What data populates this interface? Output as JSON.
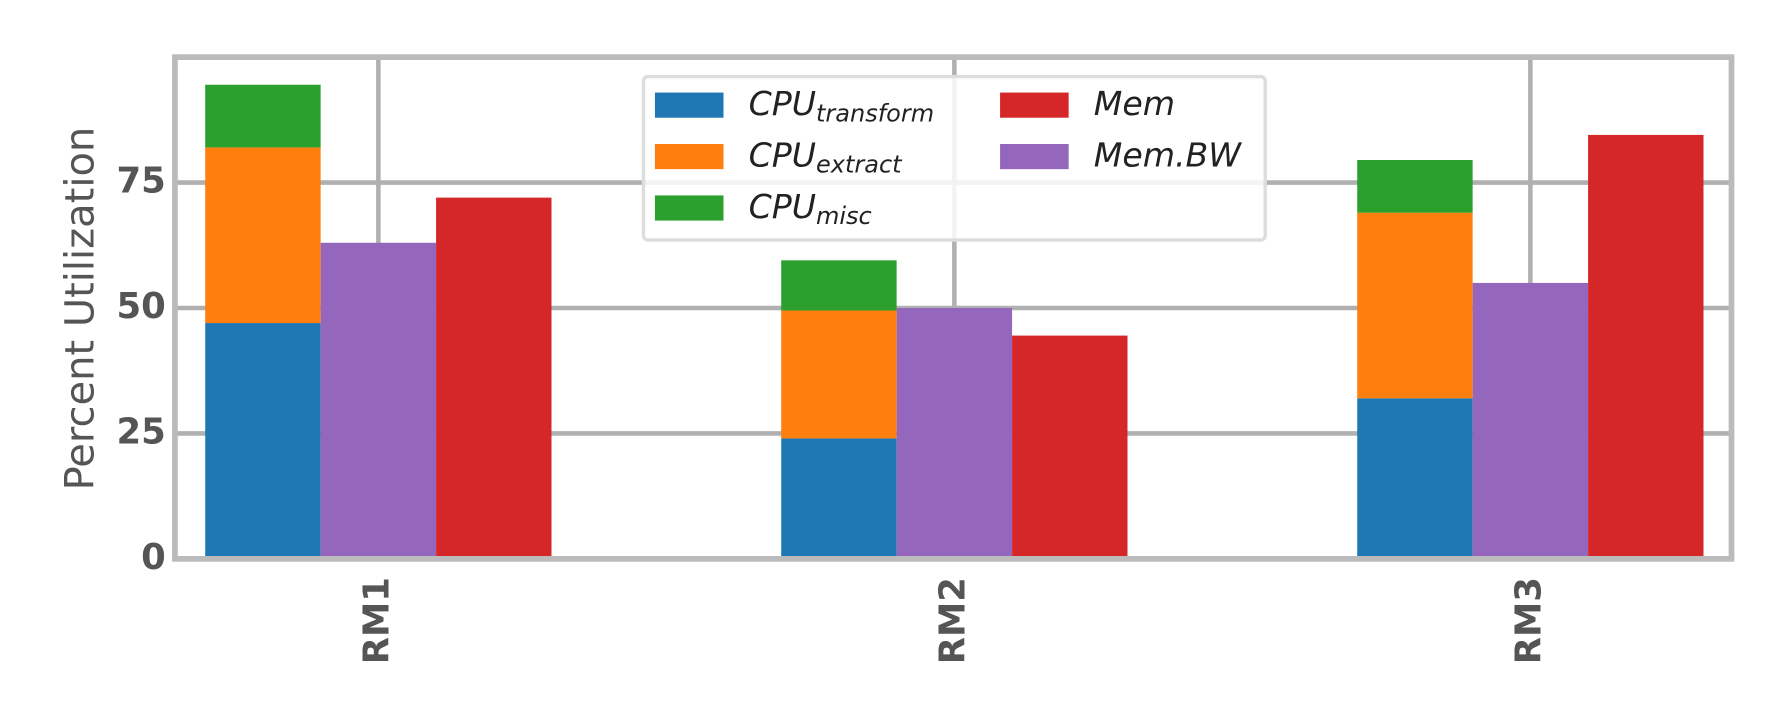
{
  "chart_data": {
    "type": "bar",
    "ylabel": "Percent Utilization",
    "categories": [
      "RM1",
      "RM2",
      "RM3"
    ],
    "series": [
      {
        "name": "CPU",
        "subscript": "transform",
        "color": "#1f77b4",
        "values": [
          47,
          24,
          32
        ]
      },
      {
        "name": "CPU",
        "subscript": "extract",
        "color": "#ff7f0e",
        "values": [
          35,
          25.5,
          37
        ]
      },
      {
        "name": "CPU",
        "subscript": "misc",
        "color": "#2ca02c",
        "values": [
          12.5,
          10,
          10.5
        ]
      },
      {
        "name": "Mem",
        "color": "#d62728",
        "values": [
          72,
          44.5,
          84.5
        ]
      },
      {
        "name": "Mem.BW",
        "color": "#9467bd",
        "values": [
          63,
          50,
          55
        ]
      }
    ],
    "ylim": [
      0,
      100
    ],
    "yticks": [
      0,
      25,
      50,
      75
    ],
    "grid": true,
    "legend": "upper center"
  }
}
